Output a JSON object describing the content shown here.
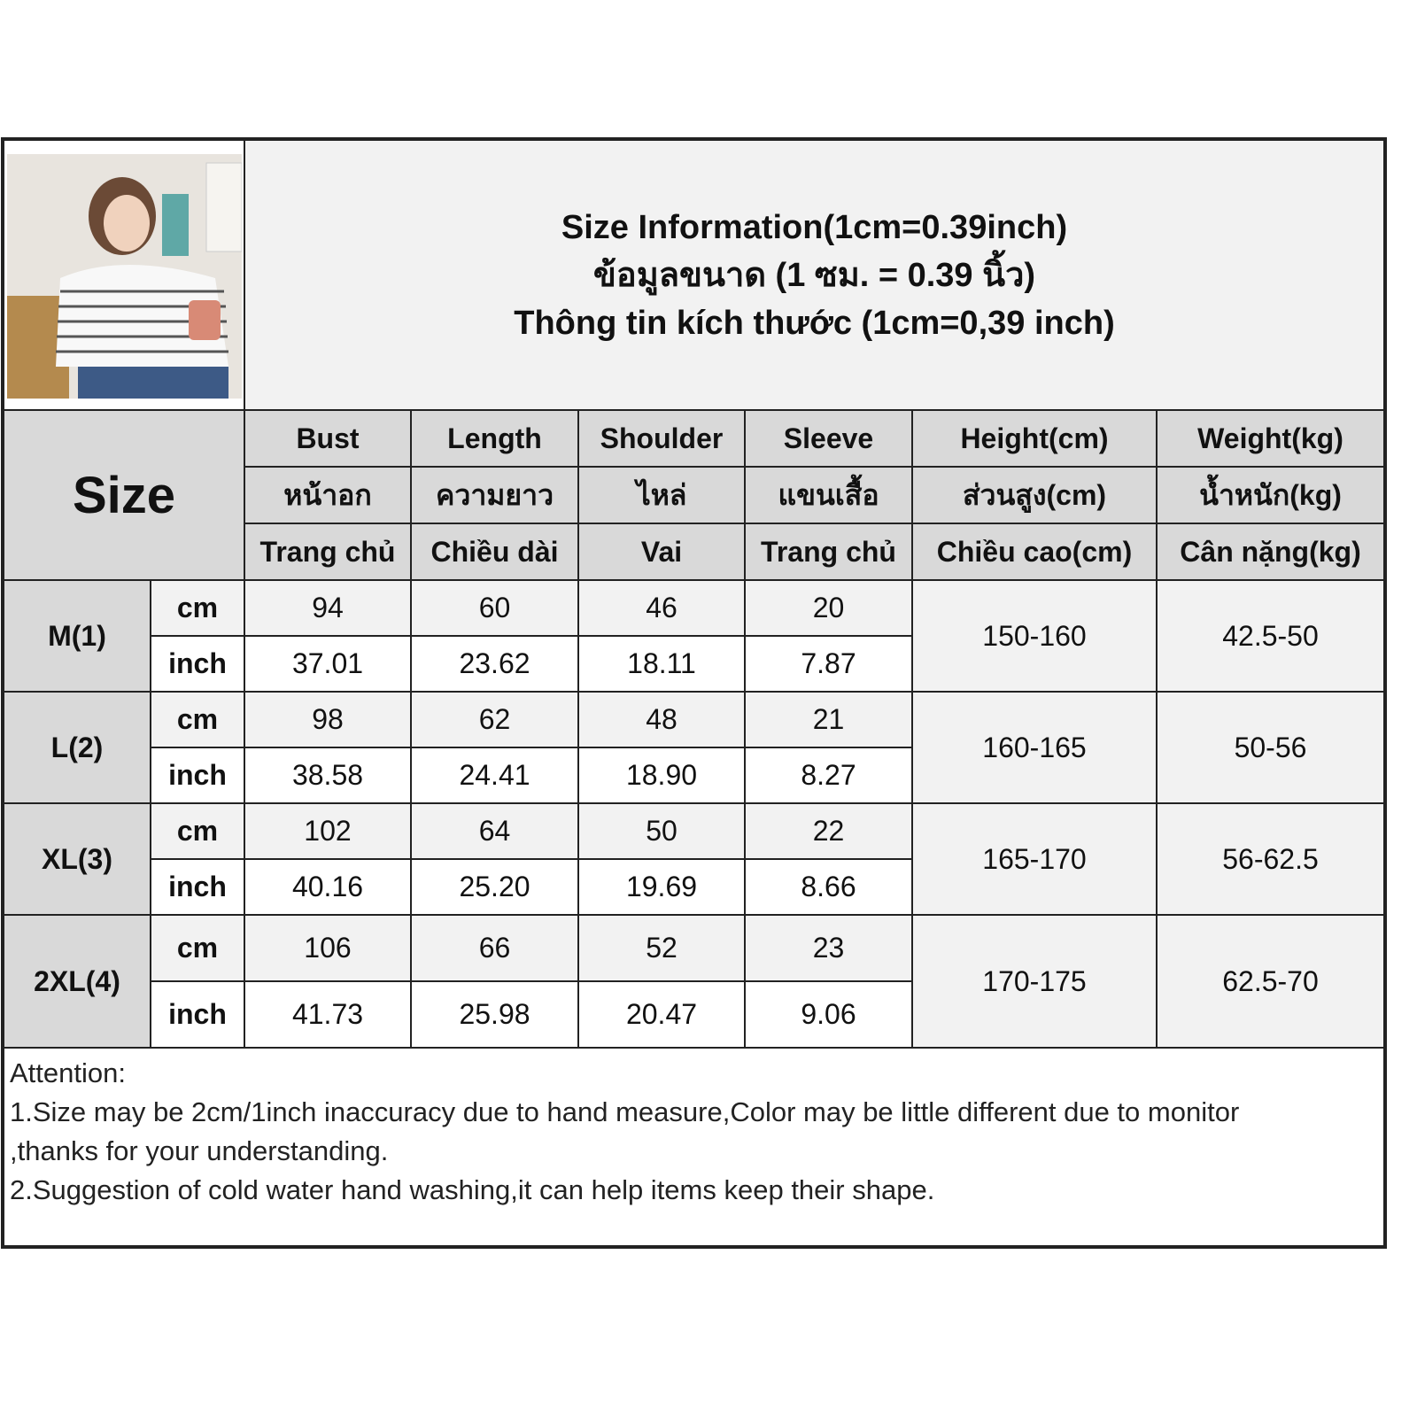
{
  "title_lines": [
    "Size Information(1cm=0.39inch)",
    "ข้อมูลขนาด (1 ซม. = 0.39 นิ้ว)",
    "Thông tin kích thước (1cm=0,39 inch)"
  ],
  "size_header": "Size",
  "columns": [
    {
      "en": "Bust",
      "th": "หน้าอก",
      "vi": "Trang chủ"
    },
    {
      "en": "Length",
      "th": "ความยาว",
      "vi": "Chiều dài"
    },
    {
      "en": "Shoulder",
      "th": "ไหล่",
      "vi": "Vai"
    },
    {
      "en": "Sleeve",
      "th": "แขนเสื้อ",
      "vi": "Trang chủ"
    },
    {
      "en": "Height(cm)",
      "th": "ส่วนสูง(cm)",
      "vi": "Chiều cao(cm)"
    },
    {
      "en": "Weight(kg)",
      "th": "น้ำหนัก(kg)",
      "vi": "Cân nặng(kg)"
    }
  ],
  "units": {
    "cm": "cm",
    "inch": "inch"
  },
  "rows": [
    {
      "size": "M(1)",
      "cm": [
        "94",
        "60",
        "46",
        "20"
      ],
      "inch": [
        "37.01",
        "23.62",
        "18.11",
        "7.87"
      ],
      "height": "150-160",
      "weight": "42.5-50"
    },
    {
      "size": "L(2)",
      "cm": [
        "98",
        "62",
        "48",
        "21"
      ],
      "inch": [
        "38.58",
        "24.41",
        "18.90",
        "8.27"
      ],
      "height": "160-165",
      "weight": "50-56"
    },
    {
      "size": "XL(3)",
      "cm": [
        "102",
        "64",
        "50",
        "22"
      ],
      "inch": [
        "40.16",
        "25.20",
        "19.69",
        "8.66"
      ],
      "height": "165-170",
      "weight": "56-62.5"
    },
    {
      "size": "2XL(4)",
      "cm": [
        "106",
        "66",
        "52",
        "23"
      ],
      "inch": [
        "41.73",
        "25.98",
        "20.47",
        "9.06"
      ],
      "height": "170-175",
      "weight": "62.5-70"
    }
  ],
  "attention": [
    "Attention:",
    "1.Size may be 2cm/1inch inaccuracy due to hand measure,Color may be little different due to monitor",
    ",thanks for your understanding.",
    "2.Suggestion of cold water hand washing,it can help items keep their shape."
  ],
  "colors": {
    "header": "#d9d9d9",
    "cm_row": "#f2f2f2",
    "inch_row": "#ffffff",
    "border": "#222222"
  }
}
